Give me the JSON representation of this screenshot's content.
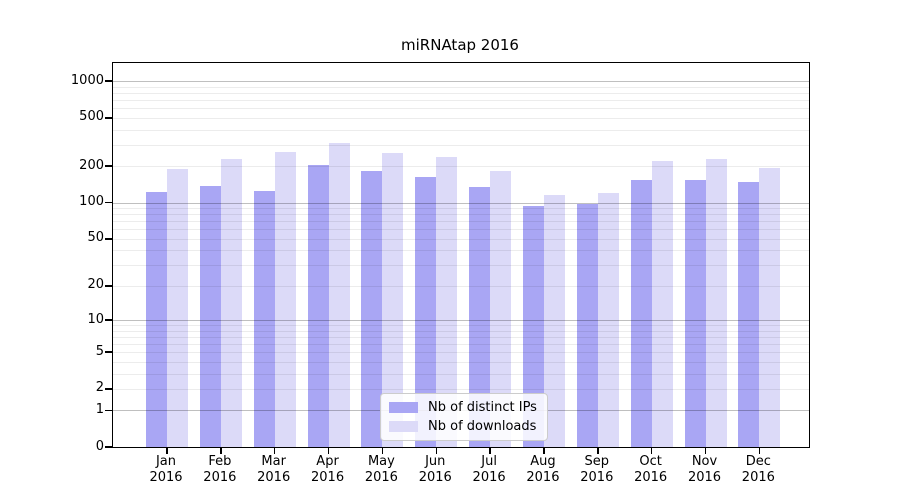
{
  "page": {
    "background": "#ffffff"
  },
  "chart_data": {
    "type": "bar",
    "title": "miRNAtap 2016",
    "categories": [
      "Jan",
      "Feb",
      "Mar",
      "Apr",
      "May",
      "Jun",
      "Jul",
      "Aug",
      "Sep",
      "Oct",
      "Nov",
      "Dec"
    ],
    "year": "2016",
    "series": [
      {
        "name": "Nb of distinct IPs",
        "color": "#a9a6f4",
        "values": [
          122,
          137,
          124,
          206,
          184,
          164,
          136,
          93,
          97,
          153,
          155,
          148
        ]
      },
      {
        "name": "Nb of downloads",
        "color": "#dcdaf8",
        "values": [
          191,
          230,
          261,
          312,
          256,
          240,
          184,
          116,
          121,
          221,
          228,
          193
        ]
      }
    ],
    "yscale": "log1p",
    "yticks": [
      0,
      1,
      2,
      5,
      10,
      20,
      50,
      100,
      200,
      500,
      1000
    ],
    "ylim": [
      0,
      1400
    ],
    "grid": "horizontal, log minor gridlines",
    "legend_position": "lower-center",
    "xlabel": "",
    "ylabel": ""
  }
}
